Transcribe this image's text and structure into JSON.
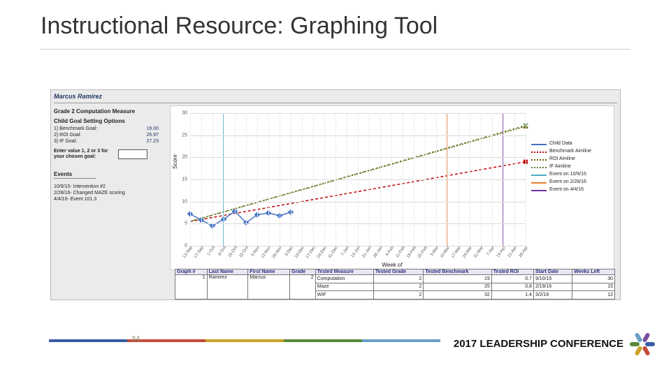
{
  "title": "Instructional Resource: Graphing Tool",
  "student_name": "Marcus Ramirez",
  "measure_title": "Grade 2 Computation Measure",
  "goal_setting": {
    "title": "Child Goal Setting Options",
    "rows": [
      {
        "label": "1) Benchmark Goal:",
        "value": "19.00"
      },
      {
        "label": "2) ROI Goal:",
        "value": "26.97"
      },
      {
        "label": "3) IF Goal:",
        "value": "27.23"
      }
    ]
  },
  "enter_prompt": "Enter value 1, 2 or 3 for your chosen goal:",
  "events_title": "Events",
  "events": [
    "10/9/15- Intervention #2",
    "2/28/16- Changed MAZE scoring",
    "4/4/16- Event 101.3"
  ],
  "chart": {
    "ylabel": "Score",
    "xlabel": "Week of",
    "ylim": [
      0,
      30
    ],
    "ytick_step": 5,
    "x_labels": [
      "13-Sep",
      "17-Sep",
      "1-Oct",
      "8-Oct",
      "15-Oct",
      "22-Oct",
      "5-Nov",
      "12-Nov",
      "26-Nov",
      "3-Dec",
      "10-Dec",
      "17-Dec",
      "24-Dec",
      "31-Dec",
      "7-Jan",
      "14-Jan",
      "21-Jan",
      "28-Jan",
      "4-Feb",
      "11-Feb",
      "18-Feb",
      "25-Feb",
      "3-Mar",
      "10-Mar",
      "17-Mar",
      "24-Mar",
      "31-Mar",
      "7-Apr",
      "14-Apr",
      "21-Apr",
      "28-Apr"
    ],
    "grid_color": "#d9d9d9",
    "series": {
      "child": {
        "label": "Child Data",
        "color": "#4472c4",
        "marker": "diamond",
        "points": [
          [
            0,
            7.2
          ],
          [
            1,
            5.8
          ],
          [
            2,
            4.5
          ],
          [
            3,
            6.0
          ],
          [
            4,
            7.8
          ],
          [
            5,
            5.2
          ],
          [
            6,
            7.0
          ],
          [
            7,
            7.4
          ],
          [
            8,
            6.8
          ],
          [
            9,
            7.6
          ]
        ]
      },
      "benchmark": {
        "label": "Benchmark Aimline",
        "color": "#c00000",
        "marker": "square",
        "dash": "4 3",
        "line": [
          [
            0,
            5.5
          ],
          [
            30,
            19.0
          ]
        ],
        "end_marker": true
      },
      "roi": {
        "label": "ROI Aimline",
        "color": "#7f6000",
        "marker": "triangle",
        "dash": "2 2",
        "line": [
          [
            0,
            5.5
          ],
          [
            30,
            27.0
          ]
        ],
        "end_marker": true
      },
      "if": {
        "label": "IF Aimline",
        "color": "#548235",
        "marker": "x",
        "dash": "3 3",
        "line": [
          [
            0,
            5.5
          ],
          [
            30,
            27.2
          ]
        ],
        "end_marker": true
      },
      "event1": {
        "label": "Event on 10/9/15",
        "color": "#4bacc6",
        "vline_x": 3
      },
      "event2": {
        "label": "Event on 2/28/16",
        "color": "#ed7d31",
        "vline_x": 23
      },
      "event3": {
        "label": "Event on 4/4/16",
        "color": "#7030a0",
        "vline_x": 28
      }
    }
  },
  "table": {
    "headers1": [
      "Graph #",
      "Last Name",
      "First Name",
      "Grade"
    ],
    "row1": [
      "1",
      "Ramirez",
      "Marcus",
      "2"
    ],
    "headers2": [
      "Tested Measure",
      "Tested Grade",
      "Tested Benchmark",
      "Tested ROI",
      "Start Date",
      "Weeks Left"
    ],
    "rows2": [
      [
        "Computation",
        "2",
        "19",
        "0.7",
        "9/10/15",
        "30"
      ],
      [
        "Maze",
        "2",
        "25",
        "0.8",
        "2/19/16",
        "15"
      ],
      [
        "WIF",
        "2",
        "32",
        "1.4",
        "3/2/16",
        "12"
      ]
    ]
  },
  "footer": {
    "slide_number": "34",
    "conference": "2017 LEADERSHIP CONFERENCE",
    "bar_colors": [
      "#3a5ca8",
      "#c74a3a",
      "#c9a227",
      "#5a8a3a",
      "#6aa0c9"
    ],
    "logo_hands": [
      "#3a5ca8",
      "#c74a3a",
      "#c9a227",
      "#5a8a3a",
      "#6aa0c9",
      "#7a4fa0"
    ]
  }
}
